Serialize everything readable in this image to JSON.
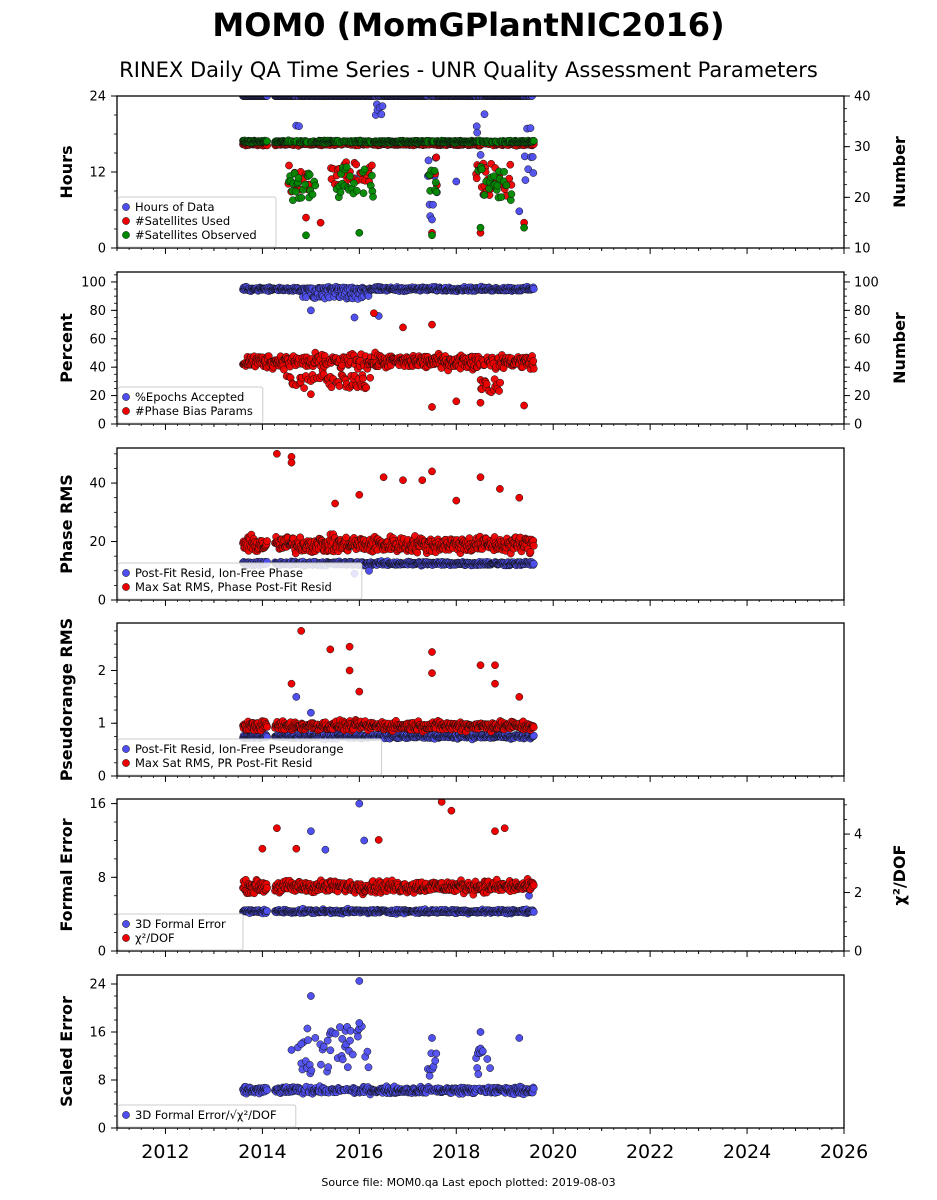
{
  "title": "MOM0 (MomGPlantNIC2016)",
  "subtitle": "RINEX Daily QA Time Series - UNR Quality Assessment Parameters",
  "footer": "Source file: MOM0.qa Last epoch plotted: 2019-08-03",
  "colors": {
    "blue": "#4f4fef",
    "red": "#ee0000",
    "green": "#008800"
  },
  "x_axis": {
    "range": [
      2011.0,
      2026.0
    ],
    "ticks": [
      2012,
      2014,
      2016,
      2018,
      2020,
      2022,
      2024,
      2026
    ],
    "tick_labels": [
      "2012",
      "2014",
      "2016",
      "2018",
      "2020",
      "2022",
      "2024",
      "2026"
    ]
  },
  "chart_data": [
    {
      "type": "scatter",
      "ylabel": "Hours",
      "ylim": [
        0,
        24
      ],
      "yticks": [
        0,
        12,
        24
      ],
      "yticklabels": [
        "0",
        "12",
        "24"
      ],
      "y2label": "Number",
      "y2lim": [
        10,
        40
      ],
      "y2ticks": [
        10,
        20,
        30,
        40
      ],
      "y2ticklabels": [
        "10",
        "20",
        "30",
        "40"
      ],
      "legend_position": "lower-left",
      "series": [
        {
          "name": "Hours of Data",
          "color": "blue",
          "axis": "left",
          "base": 24,
          "spread": 0.02,
          "dips": [
            [
              2014.6,
              2014.8,
              16,
              20
            ],
            [
              2016.3,
              2016.5,
              21,
              23
            ],
            [
              2017.4,
              2017.6,
              5,
              22
            ],
            [
              2018.4,
              2018.6,
              6,
              22
            ],
            [
              2019.4,
              2019.6,
              9,
              21
            ]
          ],
          "outliers": [
            [
              2014.7,
              10
            ],
            [
              2017.5,
              4.5
            ],
            [
              2018.0,
              10.5
            ],
            [
              2019.3,
              5.8
            ],
            [
              2015.9,
              11
            ]
          ]
        },
        {
          "name": "#Satellites Used",
          "color": "red",
          "axis": "right",
          "base": 30.5,
          "spread": 0.4,
          "dips": [
            [
              2014.5,
              2015.0,
              21,
              27
            ],
            [
              2015.4,
              2016.3,
              22,
              27
            ],
            [
              2017.4,
              2017.6,
              22,
              28
            ],
            [
              2018.4,
              2019.2,
              20,
              27
            ]
          ],
          "outliers": [
            [
              2014.9,
              16
            ],
            [
              2017.5,
              13
            ],
            [
              2018.5,
              13
            ],
            [
              2019.4,
              15
            ],
            [
              2015.2,
              15
            ]
          ]
        },
        {
          "name": "#Satellites Observed",
          "color": "green",
          "axis": "right",
          "base": 31.0,
          "spread": 0.3,
          "dips": [
            [
              2014.5,
              2015.1,
              19,
              26
            ],
            [
              2015.5,
              2016.3,
              20,
              26
            ],
            [
              2017.4,
              2017.6,
              21,
              27
            ],
            [
              2018.4,
              2019.2,
              19,
              26
            ]
          ],
          "outliers": [
            [
              2014.9,
              12.5
            ],
            [
              2017.5,
              12.5
            ],
            [
              2018.5,
              14
            ],
            [
              2019.4,
              14
            ],
            [
              2016.0,
              13
            ]
          ]
        }
      ]
    },
    {
      "type": "scatter",
      "ylabel": "Percent",
      "ylim": [
        0,
        107
      ],
      "yticks": [
        0,
        20,
        40,
        60,
        80,
        100
      ],
      "yticklabels": [
        "0",
        "20",
        "40",
        "60",
        "80",
        "100"
      ],
      "y2label": "Number",
      "y2lim": [
        0,
        107
      ],
      "y2ticks": [
        0,
        20,
        40,
        60,
        80,
        100
      ],
      "y2ticklabels": [
        "0",
        "20",
        "40",
        "60",
        "80",
        "100"
      ],
      "legend_position": "lower-left",
      "series": [
        {
          "name": "%Epochs Accepted",
          "color": "blue",
          "axis": "left",
          "base": 95,
          "spread": 2,
          "dips": [
            [
              2014.8,
              2016.2,
              88,
              92
            ]
          ],
          "outliers": [
            [
              2015.0,
              80
            ],
            [
              2015.9,
              75
            ],
            [
              2016.4,
              76
            ]
          ]
        },
        {
          "name": "#Phase Bias Params",
          "color": "red",
          "axis": "right",
          "base": 44,
          "spread": 7,
          "dips": [
            [
              2014.5,
              2016.3,
              25,
              35
            ],
            [
              2018.5,
              2019.0,
              22,
              32
            ]
          ],
          "outliers": [
            [
              2015.0,
              21
            ],
            [
              2017.5,
              12
            ],
            [
              2018.0,
              16
            ],
            [
              2018.5,
              15
            ],
            [
              2019.4,
              13
            ],
            [
              2016.3,
              78
            ],
            [
              2017.5,
              70
            ],
            [
              2016.9,
              68
            ]
          ]
        }
      ]
    },
    {
      "type": "scatter",
      "ylabel": "Phase RMS",
      "ylim": [
        0,
        52
      ],
      "yticks": [
        0,
        20,
        40
      ],
      "yticklabels": [
        "0",
        "20",
        "40"
      ],
      "legend_position": "lower-left",
      "series": [
        {
          "name": "Post-Fit Resid, Ion-Free Phase",
          "color": "blue",
          "axis": "left",
          "base": 12.5,
          "spread": 1.0,
          "dips": [],
          "outliers": [
            [
              2015.9,
              9
            ],
            [
              2016.2,
              10
            ]
          ]
        },
        {
          "name": "Max Sat RMS, Phase Post-Fit Resid",
          "color": "red",
          "axis": "left",
          "base": 19,
          "spread": 4,
          "dips": [],
          "outliers": [
            [
              2014.3,
              50
            ],
            [
              2014.6,
              49
            ],
            [
              2014.6,
              47
            ],
            [
              2015.5,
              33
            ],
            [
              2016.0,
              36
            ],
            [
              2016.5,
              42
            ],
            [
              2016.9,
              41
            ],
            [
              2017.3,
              41
            ],
            [
              2017.5,
              44
            ],
            [
              2018.0,
              34
            ],
            [
              2018.5,
              42
            ],
            [
              2018.9,
              38
            ],
            [
              2019.3,
              35
            ]
          ]
        }
      ]
    },
    {
      "type": "scatter",
      "ylabel": "Pseudorange RMS",
      "ylim": [
        0,
        2.9
      ],
      "yticks": [
        0,
        1,
        2
      ],
      "yticklabels": [
        "0",
        "1",
        "2"
      ],
      "legend_position": "lower-left",
      "series": [
        {
          "name": "Post-Fit Resid, Ion-Free Pseudorange",
          "color": "blue",
          "axis": "left",
          "base": 0.75,
          "spread": 0.06,
          "dips": [],
          "outliers": [
            [
              2014.7,
              1.5
            ],
            [
              2015.0,
              1.2
            ]
          ]
        },
        {
          "name": "Max Sat RMS, PR Post-Fit Resid",
          "color": "red",
          "axis": "left",
          "base": 0.95,
          "spread": 0.13,
          "dips": [],
          "outliers": [
            [
              2014.8,
              2.75
            ],
            [
              2015.4,
              2.4
            ],
            [
              2015.8,
              2.45
            ],
            [
              2015.8,
              2.0
            ],
            [
              2016.0,
              1.6
            ],
            [
              2017.5,
              2.35
            ],
            [
              2017.5,
              1.95
            ],
            [
              2018.5,
              2.1
            ],
            [
              2018.8,
              2.1
            ],
            [
              2018.8,
              1.75
            ],
            [
              2019.3,
              1.5
            ],
            [
              2014.6,
              1.75
            ]
          ]
        }
      ]
    },
    {
      "type": "scatter",
      "ylabel": "Formal Error",
      "ylim": [
        0,
        16.5
      ],
      "yticks": [
        0,
        8,
        16
      ],
      "yticklabels": [
        "0",
        "8",
        "16"
      ],
      "y2label": "χ²/DOF",
      "y2lim": [
        0,
        5.2
      ],
      "y2ticks": [
        0,
        2,
        4
      ],
      "y2ticklabels": [
        "0",
        "2",
        "4"
      ],
      "legend_position": "lower-left",
      "series": [
        {
          "name": "3D Formal Error",
          "color": "blue",
          "axis": "left",
          "base": 4.3,
          "spread": 0.3,
          "dips": [],
          "outliers": [
            [
              2015.0,
              13
            ],
            [
              2015.3,
              11
            ],
            [
              2016.0,
              16
            ],
            [
              2016.1,
              12
            ],
            [
              2019.5,
              6
            ]
          ]
        },
        {
          "name": "χ²/DOF",
          "color": "red",
          "axis": "right",
          "base": 2.2,
          "spread": 0.3,
          "dips": [],
          "outliers": [
            [
              2014.3,
              4.2
            ],
            [
              2014.7,
              3.5
            ],
            [
              2016.4,
              3.8
            ],
            [
              2017.7,
              5.1
            ],
            [
              2017.9,
              4.8
            ],
            [
              2018.8,
              4.1
            ],
            [
              2019.0,
              4.2
            ],
            [
              2014.0,
              3.5
            ]
          ]
        }
      ]
    },
    {
      "type": "scatter",
      "ylabel": "Scaled Error",
      "ylim": [
        0,
        25.5
      ],
      "yticks": [
        0,
        8,
        16,
        24
      ],
      "yticklabels": [
        "0",
        "8",
        "16",
        "24"
      ],
      "legend_position": "lower-left",
      "series": [
        {
          "name": "3D Formal Error/√χ²/DOF",
          "color": "blue",
          "axis": "left",
          "base": 6.3,
          "spread": 0.8,
          "dips": [
            [
              2014.7,
              2016.2,
              9,
              17
            ],
            [
              2017.4,
              2017.6,
              8,
              13
            ],
            [
              2018.4,
              2018.7,
              8,
              14
            ]
          ],
          "outliers": [
            [
              2015.0,
              22
            ],
            [
              2016.0,
              24.5
            ],
            [
              2016.0,
              17.5
            ],
            [
              2017.5,
              15
            ],
            [
              2018.5,
              16
            ],
            [
              2019.3,
              15
            ],
            [
              2014.6,
              13
            ],
            [
              2014.8,
              14
            ]
          ]
        }
      ]
    }
  ]
}
